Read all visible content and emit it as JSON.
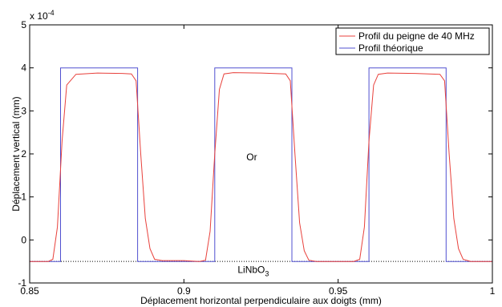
{
  "chart_data": {
    "type": "line",
    "xlabel": "Déplacement horizontal perpendiculaire aux doigts (mm)",
    "ylabel": "Déplacement vertical (mm)",
    "y_multiplier": {
      "base": "x 10",
      "exponent": "-4"
    },
    "xlim": [
      0.85,
      1.0
    ],
    "ylim": [
      -1,
      5
    ],
    "x_ticks": [
      0.85,
      0.9,
      0.95,
      1.0
    ],
    "x_tick_labels": [
      "0.85",
      "0.9",
      "0.95",
      "1"
    ],
    "y_ticks": [
      -1,
      0,
      1,
      2,
      3,
      4,
      5
    ],
    "y_tick_labels": [
      "-1",
      "0",
      "1",
      "2",
      "3",
      "4",
      "5"
    ],
    "grid": false,
    "legend_position": "top-right",
    "series": [
      {
        "name": "Profil du peigne de 40 MHz",
        "color": "#e8413c",
        "x": [
          0.85,
          0.856,
          0.8575,
          0.859,
          0.8605,
          0.862,
          0.865,
          0.872,
          0.88,
          0.883,
          0.8845,
          0.886,
          0.8875,
          0.889,
          0.8905,
          0.893,
          0.9,
          0.905,
          0.907,
          0.9085,
          0.91,
          0.9115,
          0.913,
          0.916,
          0.925,
          0.933,
          0.9345,
          0.936,
          0.9375,
          0.939,
          0.9405,
          0.943,
          0.95,
          0.955,
          0.957,
          0.9585,
          0.96,
          0.9615,
          0.963,
          0.966,
          0.975,
          0.983,
          0.9845,
          0.986,
          0.9875,
          0.989,
          0.9905,
          0.993,
          1.0
        ],
        "y": [
          -0.5,
          -0.5,
          -0.45,
          0.3,
          2.3,
          3.6,
          3.85,
          3.88,
          3.87,
          3.86,
          3.7,
          2.0,
          0.5,
          -0.2,
          -0.45,
          -0.48,
          -0.48,
          -0.5,
          -0.47,
          0.2,
          2.0,
          3.5,
          3.86,
          3.89,
          3.88,
          3.86,
          3.7,
          2.0,
          0.4,
          -0.25,
          -0.47,
          -0.5,
          -0.5,
          -0.5,
          -0.45,
          0.3,
          2.3,
          3.6,
          3.85,
          3.88,
          3.87,
          3.85,
          3.7,
          2.0,
          0.5,
          -0.2,
          -0.45,
          -0.5,
          -0.5
        ]
      },
      {
        "name": "Profil théorique",
        "color": "#5050d0",
        "x": [
          0.85,
          0.86,
          0.86,
          0.885,
          0.885,
          0.91,
          0.91,
          0.935,
          0.935,
          0.96,
          0.96,
          0.985,
          0.985,
          1.0
        ],
        "y": [
          -0.5,
          -0.5,
          4.0,
          4.0,
          -0.5,
          -0.5,
          4.0,
          4.0,
          -0.5,
          -0.5,
          4.0,
          4.0,
          -0.5,
          -0.5
        ]
      }
    ],
    "reference_line": {
      "y": -0.5,
      "style": "dotted"
    },
    "annotations": [
      {
        "text": "Or",
        "x": 0.922,
        "y": 1.85
      },
      {
        "text": "LiNbO",
        "subscript": "3",
        "x": 0.9225,
        "y": -0.77
      }
    ]
  }
}
